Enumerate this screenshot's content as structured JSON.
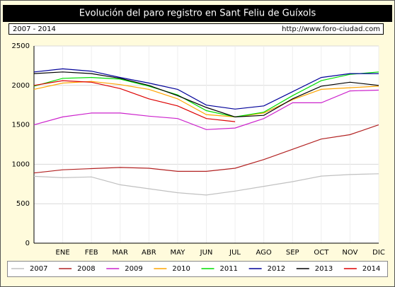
{
  "chart_data": {
    "type": "line",
    "title": "Evolución del paro registro en Sant Feliu de Guíxols",
    "subtitle": "2007 - 2014",
    "source": "http://www.foro-ciudad.com",
    "categories": [
      null,
      "ENE",
      "FEB",
      "MAR",
      "ABR",
      "MAY",
      "JUN",
      "JUL",
      "AGO",
      "SEP",
      "OCT",
      "NOV",
      "DIC"
    ],
    "ylim": [
      0,
      2500
    ],
    "yticks": [
      0,
      500,
      1000,
      1500,
      2000,
      2500
    ],
    "grid": true,
    "legend": "bottom",
    "series": [
      {
        "name": "2007",
        "color": "#c0c0c0",
        "values": [
          848,
          830,
          840,
          740,
          690,
          640,
          610,
          660,
          720,
          780,
          850,
          870,
          880
        ]
      },
      {
        "name": "2008",
        "color": "#b22222",
        "values": [
          890,
          930,
          945,
          960,
          950,
          910,
          910,
          950,
          1060,
          1190,
          1320,
          1375,
          1500
        ]
      },
      {
        "name": "2009",
        "color": "#cc22cc",
        "values": [
          1500,
          1600,
          1650,
          1650,
          1610,
          1580,
          1440,
          1460,
          1580,
          1780,
          1780,
          1930,
          1940
        ]
      },
      {
        "name": "2010",
        "color": "#ffa500",
        "values": [
          1950,
          2030,
          2050,
          2010,
          1950,
          1830,
          1630,
          1600,
          1650,
          1820,
          1950,
          1970,
          1990
        ]
      },
      {
        "name": "2011",
        "color": "#00dd00",
        "values": [
          1990,
          2090,
          2100,
          2080,
          1990,
          1880,
          1680,
          1600,
          1660,
          1870,
          2060,
          2140,
          2170
        ]
      },
      {
        "name": "2012",
        "color": "#000099",
        "values": [
          2170,
          2210,
          2180,
          2100,
          2030,
          1950,
          1750,
          1700,
          1740,
          1920,
          2100,
          2150,
          2150
        ]
      },
      {
        "name": "2013",
        "color": "#000000",
        "values": [
          2150,
          2170,
          2150,
          2090,
          2000,
          1870,
          1720,
          1600,
          1620,
          1830,
          1990,
          2040,
          2000
        ]
      },
      {
        "name": "2014",
        "color": "#dd0000",
        "values": [
          2000,
          2060,
          2040,
          1960,
          1830,
          1740,
          1580,
          1540,
          null,
          null,
          null,
          null,
          null
        ]
      }
    ]
  }
}
